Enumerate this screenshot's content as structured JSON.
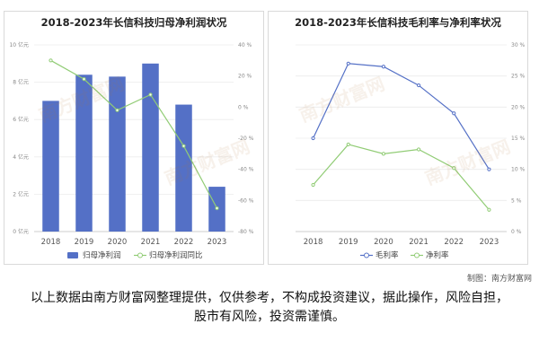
{
  "credit": "制图：南方财富网",
  "disclaimer": "以上数据由南方财富网整理提供，仅供参考，不构成投资建议，据此操作，风险自担，股市有风险，投资需谨慎。",
  "watermark_text": "南方财富网",
  "chart_data": [
    {
      "type": "bar",
      "title": "2018-2023年长信科技归母净利润状况",
      "categories": [
        "2018",
        "2019",
        "2020",
        "2021",
        "2022",
        "2023"
      ],
      "series": [
        {
          "name": "归母净利润",
          "kind": "bar",
          "axis": "left",
          "color": "#5470c6",
          "values": [
            7.0,
            8.4,
            8.3,
            9.0,
            6.8,
            2.4
          ]
        },
        {
          "name": "归母净利润同比",
          "kind": "line",
          "axis": "right",
          "color": "#91cc75",
          "values": [
            30,
            18,
            -2,
            8,
            -25,
            -65
          ]
        }
      ],
      "y_left": {
        "ylim": [
          0,
          10
        ],
        "ticks": [
          "0 亿元",
          "2 亿元",
          "4 亿元",
          "6 亿元",
          "8 亿元",
          "10 亿元"
        ]
      },
      "y_right": {
        "ylim": [
          -80,
          40
        ],
        "ticks": [
          "-80 %",
          "-60 %",
          "-40 %",
          "-20 %",
          "0 %",
          "20 %",
          "40 %"
        ]
      },
      "legend_position": "bottom",
      "grid": true
    },
    {
      "type": "line",
      "title": "2018-2023年长信科技毛利率与净利率状况",
      "categories": [
        "2018",
        "2019",
        "2020",
        "2021",
        "2022",
        "2023"
      ],
      "series": [
        {
          "name": "毛利率",
          "color": "#5470c6",
          "values": [
            15.0,
            27.0,
            26.5,
            23.5,
            19.0,
            10.0
          ]
        },
        {
          "name": "净利率",
          "color": "#91cc75",
          "values": [
            7.5,
            14.0,
            12.5,
            13.2,
            10.2,
            3.5
          ]
        }
      ],
      "y_right": {
        "ylim": [
          0,
          30
        ],
        "ticks": [
          "0 %",
          "5 %",
          "10 %",
          "15 %",
          "20 %",
          "25 %",
          "30 %"
        ]
      },
      "legend_position": "bottom",
      "grid": true
    }
  ]
}
